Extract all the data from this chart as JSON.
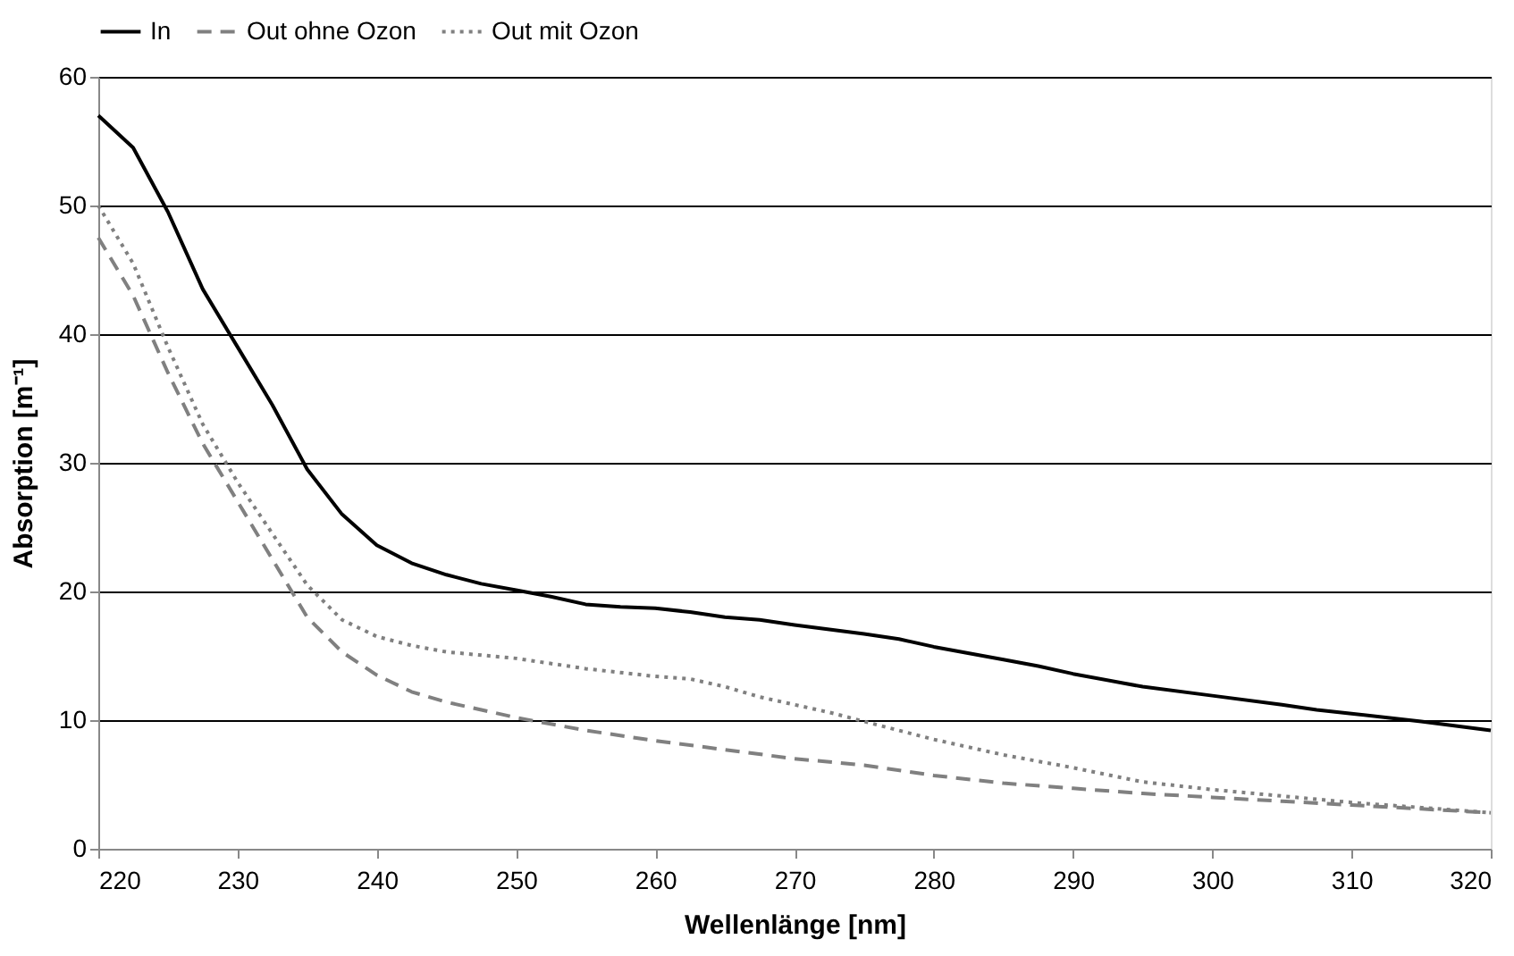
{
  "chart_data": {
    "type": "line",
    "xlabel": "Wellenlänge [nm]",
    "ylabel": "Absorption [m⁻¹]",
    "xlim": [
      220,
      320
    ],
    "xticks": [
      220,
      230,
      240,
      250,
      260,
      270,
      280,
      290,
      300,
      310,
      320
    ],
    "ylim": [
      0,
      60
    ],
    "yticks": [
      0,
      10,
      20,
      30,
      40,
      50,
      60
    ],
    "grid": "y",
    "legend": "top",
    "marker": "none",
    "series": [
      {
        "name": "In",
        "color": "#000000",
        "line_style": "solid",
        "x": [
          220,
          222.5,
          225,
          227.5,
          230,
          232.5,
          235,
          237.5,
          240,
          242.5,
          245,
          247.5,
          250,
          252.5,
          255,
          257.5,
          260,
          262.5,
          265,
          267.5,
          270,
          275,
          277.5,
          280,
          285,
          287.5,
          290,
          295,
          300,
          305,
          307.5,
          310,
          315,
          320
        ],
        "values": [
          57,
          54.5,
          49.5,
          43.5,
          39,
          34.5,
          29.5,
          26,
          23.6,
          22.2,
          21.3,
          20.6,
          20.1,
          19.6,
          19.0,
          18.8,
          18.7,
          18.4,
          18.0,
          17.8,
          17.4,
          16.7,
          16.3,
          15.7,
          14.7,
          14.2,
          13.6,
          12.6,
          11.9,
          11.2,
          10.8,
          10.5,
          9.9,
          9.2
        ]
      },
      {
        "name": "Out ohne Ozon",
        "color": "#808080",
        "line_style": "dashed",
        "x": [
          220,
          222.5,
          225,
          227.5,
          230,
          232.5,
          235,
          237.5,
          240,
          242.5,
          245,
          250,
          255,
          260,
          265,
          270,
          275,
          280,
          285,
          290,
          295,
          300,
          305,
          310,
          315,
          320
        ],
        "values": [
          47.5,
          43,
          37,
          31.5,
          27,
          22.5,
          18,
          15.3,
          13.5,
          12.2,
          11.4,
          10.2,
          9.2,
          8.4,
          7.7,
          7.0,
          6.5,
          5.7,
          5.1,
          4.7,
          4.3,
          4.0,
          3.7,
          3.4,
          3.1,
          2.8
        ]
      },
      {
        "name": "Out mit Ozon",
        "color": "#808080",
        "line_style": "dotted",
        "x": [
          220,
          222.5,
          225,
          227.5,
          230,
          232.5,
          235,
          237.5,
          240,
          242.5,
          245,
          250,
          255,
          260,
          262.5,
          265,
          267.5,
          270,
          272.5,
          275,
          280,
          285,
          290,
          295,
          300,
          305,
          310,
          315,
          320
        ],
        "values": [
          50,
          45.5,
          39,
          33,
          28.5,
          24.5,
          20.5,
          17.8,
          16.5,
          15.8,
          15.3,
          14.8,
          14.0,
          13.4,
          13.2,
          12.6,
          11.8,
          11.2,
          10.6,
          9.9,
          8.5,
          7.3,
          6.3,
          5.2,
          4.6,
          4.1,
          3.6,
          3.2,
          2.8
        ]
      }
    ]
  }
}
